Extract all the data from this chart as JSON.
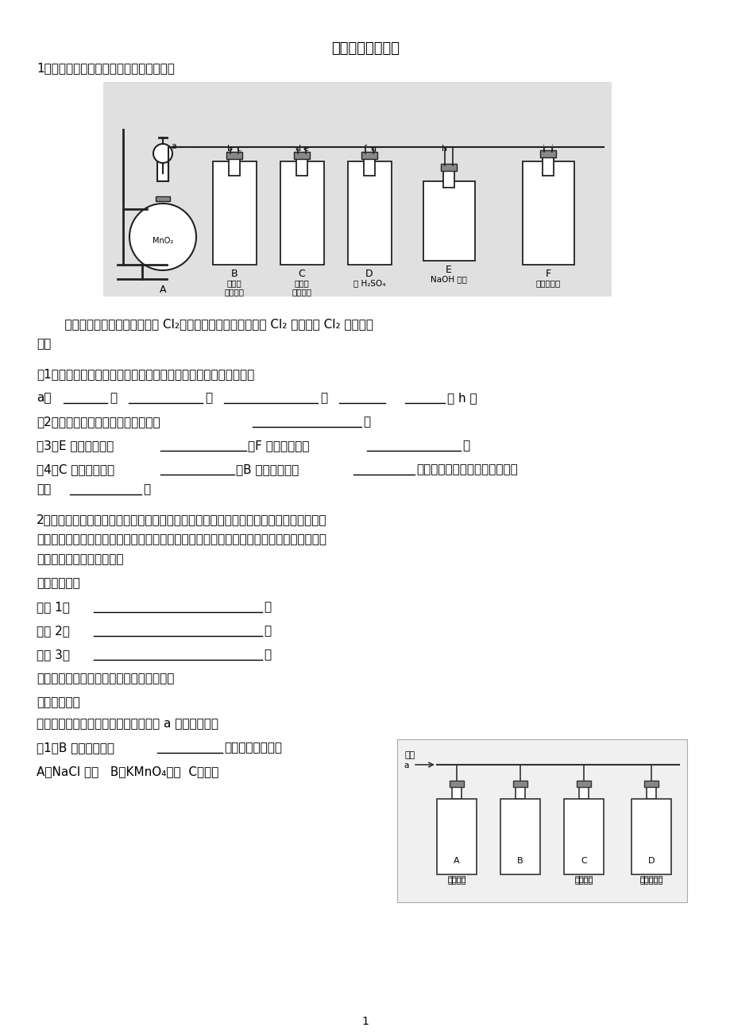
{
  "title": "化学实验专题练习",
  "bg_color": "#ffffff",
  "text_color": "#000000",
  "line1": "1、请利用下列装置及试剂组装一套装置。",
  "para1": "    其流程是，先制取纯净干燥的 Cl₂（不收集），后试验干燥的 Cl₂ 和潮湿的 Cl₂ 有无漂白",
  "para1b": "性。",
  "q1": "（1）按气体从左向右流向将各装置依次连接起来（填字母序号）：",
  "q2_pre": "（2）烧瓶中发生反应的化学方程式是",
  "q3_pre1": "（3）E 装置的作用是",
  "q3_mid": "，F 装置的作用是",
  "q4_pre1": "（4）C 瓶中的现象是",
  "q4_mid": "，B 瓶中的现象是",
  "q4_end": "。以上事实说明起漂白作用的物",
  "q4_line2_pre": "质是",
  "line2": "2、某化学兴趣小组为了探究常温下某非金属氧化物形成的未知气体的成分。该小组成员将",
  "line2b": "气体通入澄清石灰水，发现澄清石灰水变浑浊，持续通入发现浑浊又变澄清，由此该小组成",
  "line2c": "员对气体的成分提出猜想。",
  "section2": "【提出猜想】",
  "guess1_pre": "猜想 1：",
  "guess2_pre": "猜想 2：",
  "guess3_pre": "猜想 3：",
  "line3": "为了验证猜想，该小组设计实验加以探究：",
  "section3": "【实验探究】",
  "line4": "该小组同学按如图所示装置，将气体从 a 端通入，则：",
  "q5_pre": "（1）B 中可以装下列",
  "q5_post": "试剂（填编号）。",
  "q6": "A．NaCl 溶液   B．KMnO₄溶液  C．盐酸",
  "apparatus_labels": [
    "B  潮湿的\n有色布条",
    "C  干燥的\n有色布条",
    "D  浓 H₂SO₄",
    "E  NaOH 溶液",
    "F  饱和食盐水"
  ],
  "diag_label_A": "品红溶液",
  "diag_label_C": "品红溶液",
  "diag_label_D": "澄清石灰水",
  "page_num": "1"
}
